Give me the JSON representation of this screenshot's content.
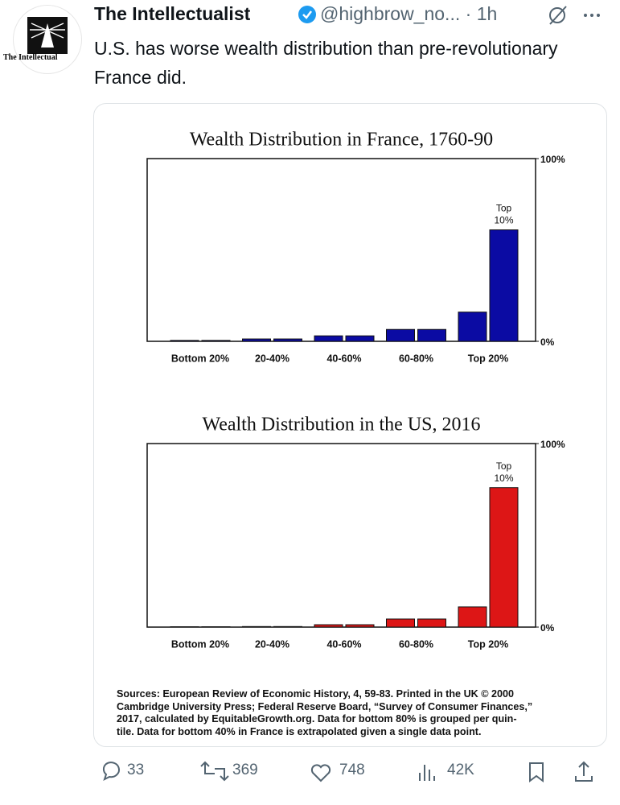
{
  "tweet": {
    "avatar_text": "The Intellectual",
    "name": "The Intellectualist",
    "handle": "@highbrow_no...",
    "time": "1h",
    "text": "U.S. has worse wealth distribution than pre-revolutionary France did.",
    "sources": [
      "Sources: European Review of Economic History, 4, 59-83. Printed in the UK © 2000",
      "Cambridge University Press; Federal Reserve Board, “Survey of Consumer Finances,”",
      "2017, calculated by EquitableGrowth.org. Data for bottom 80% is grouped per quin-",
      "tile. Data for bottom 40% in France is extrapolated given a single data point."
    ],
    "replies": "33",
    "reposts": "369",
    "likes": "748",
    "views": "42K"
  },
  "chart_data": [
    {
      "type": "bar",
      "title": "Wealth Distribution in France, 1760-90",
      "categories": [
        "Bottom 20%",
        null,
        "20-40%",
        null,
        "40-60%",
        null,
        "60-80%",
        null,
        "Top 20%",
        null
      ],
      "values": [
        0.5,
        0.5,
        1.3,
        1.3,
        3,
        3,
        6.5,
        6.5,
        16,
        61
      ],
      "color": "#0b0ba3",
      "ylim": [
        0,
        100
      ],
      "yticks": [
        {
          "value": 0,
          "label": "0%"
        },
        {
          "value": 100,
          "label": "100%"
        }
      ],
      "grid": false,
      "annotation": [
        "Top",
        "10%"
      ]
    },
    {
      "type": "bar",
      "title": "Wealth Distribution in the US, 2016",
      "categories": [
        "Bottom 20%",
        null,
        "20-40%",
        null,
        "40-60%",
        null,
        "60-80%",
        null,
        "Top 20%",
        null
      ],
      "values": [
        0.2,
        0.2,
        0.3,
        0.3,
        1.3,
        1.3,
        4.4,
        4.4,
        11,
        76
      ],
      "color": "#dd1616",
      "ylim": [
        0,
        100
      ],
      "yticks": [
        {
          "value": 0,
          "label": "0%"
        },
        {
          "value": 100,
          "label": "100%"
        }
      ],
      "grid": false,
      "annotation": [
        "Top",
        "10%"
      ]
    }
  ]
}
